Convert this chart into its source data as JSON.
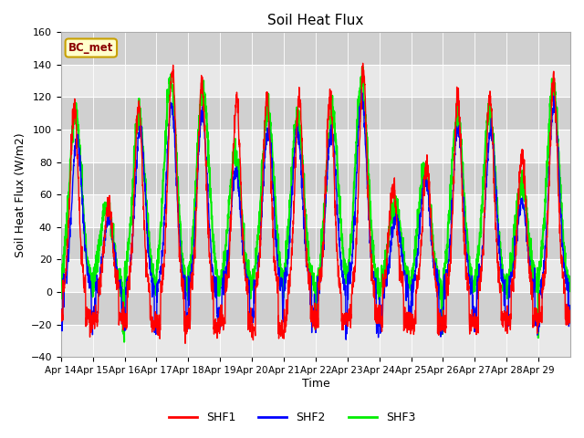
{
  "title": "Soil Heat Flux",
  "xlabel": "Time",
  "ylabel": "Soil Heat Flux (W/m2)",
  "ylim": [
    -40,
    160
  ],
  "legend_label": "BC_met",
  "series_labels": [
    "SHF1",
    "SHF2",
    "SHF3"
  ],
  "series_colors": [
    "red",
    "blue",
    "#00ee00"
  ],
  "background_color": "#dcdcdc",
  "x_tick_labels": [
    "Apr 14",
    "Apr 15",
    "Apr 16",
    "Apr 17",
    "Apr 18",
    "Apr 19",
    "Apr 20",
    "Apr 21",
    "Apr 22",
    "Apr 23",
    "Apr 24",
    "Apr 25",
    "Apr 26",
    "Apr 27",
    "Apr 28",
    "Apr 29"
  ],
  "n_days": 16,
  "points_per_day": 144,
  "yticks": [
    -40,
    -20,
    0,
    20,
    40,
    60,
    80,
    100,
    120,
    140,
    160
  ],
  "peak_amps_shf1": [
    115,
    55,
    115,
    140,
    130,
    120,
    120,
    120,
    120,
    135,
    65,
    80,
    120,
    120,
    85,
    130
  ],
  "peak_amps_shf3": [
    110,
    55,
    110,
    130,
    125,
    85,
    110,
    110,
    110,
    130,
    55,
    75,
    110,
    110,
    65,
    125
  ],
  "peak_amps_shf2": [
    95,
    45,
    100,
    115,
    110,
    75,
    100,
    100,
    100,
    120,
    45,
    70,
    100,
    100,
    55,
    115
  ]
}
